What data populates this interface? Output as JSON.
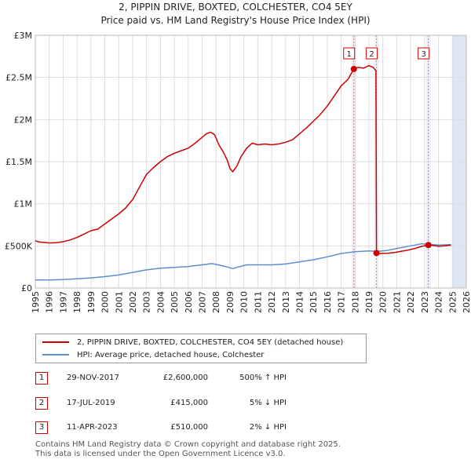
{
  "header": {
    "title_line1": "2, PIPPIN DRIVE, BOXTED, COLCHESTER, CO4 5EY",
    "title_line2": "Price paid vs. HM Land Registry's House Price Index (HPI)"
  },
  "chart_data": {
    "type": "line",
    "xlim": [
      1995,
      2026
    ],
    "ylim": [
      0,
      3000000
    ],
    "y_ticks": [
      {
        "value": 0,
        "label": "£0"
      },
      {
        "value": 500000,
        "label": "£500K"
      },
      {
        "value": 1000000,
        "label": "£1M"
      },
      {
        "value": 1500000,
        "label": "£1.5M"
      },
      {
        "value": 2000000,
        "label": "£2M"
      },
      {
        "value": 2500000,
        "label": "£2.5M"
      },
      {
        "value": 3000000,
        "label": "£3M"
      }
    ],
    "x_ticks": [
      "1995",
      "1996",
      "1997",
      "1998",
      "1999",
      "2000",
      "2001",
      "2002",
      "2003",
      "2004",
      "2005",
      "2006",
      "2007",
      "2008",
      "2009",
      "2010",
      "2011",
      "2012",
      "2013",
      "2014",
      "2015",
      "2016",
      "2017",
      "2018",
      "2019",
      "2020",
      "2021",
      "2022",
      "2023",
      "2024",
      "2025",
      "2026"
    ],
    "data_end": 2025.0,
    "series": [
      {
        "name": "2, PIPPIN DRIVE, BOXTED, COLCHESTER, CO4 5EY (detached house)",
        "color": "#cc0000",
        "points": [
          [
            1995.0,
            560000
          ],
          [
            1995.3,
            545000
          ],
          [
            1995.7,
            540000
          ],
          [
            1996.0,
            535000
          ],
          [
            1996.5,
            538000
          ],
          [
            1997.0,
            550000
          ],
          [
            1997.5,
            570000
          ],
          [
            1998.0,
            600000
          ],
          [
            1998.5,
            640000
          ],
          [
            1999.0,
            680000
          ],
          [
            1999.5,
            700000
          ],
          [
            2000.0,
            760000
          ],
          [
            2000.5,
            820000
          ],
          [
            2001.0,
            880000
          ],
          [
            2001.5,
            950000
          ],
          [
            2002.0,
            1050000
          ],
          [
            2002.5,
            1200000
          ],
          [
            2003.0,
            1350000
          ],
          [
            2003.5,
            1430000
          ],
          [
            2004.0,
            1500000
          ],
          [
            2004.5,
            1560000
          ],
          [
            2005.0,
            1600000
          ],
          [
            2005.5,
            1630000
          ],
          [
            2006.0,
            1660000
          ],
          [
            2006.5,
            1720000
          ],
          [
            2007.0,
            1790000
          ],
          [
            2007.3,
            1830000
          ],
          [
            2007.6,
            1850000
          ],
          [
            2007.9,
            1820000
          ],
          [
            2008.2,
            1700000
          ],
          [
            2008.5,
            1620000
          ],
          [
            2008.8,
            1520000
          ],
          [
            2009.0,
            1420000
          ],
          [
            2009.2,
            1380000
          ],
          [
            2009.5,
            1450000
          ],
          [
            2009.8,
            1560000
          ],
          [
            2010.2,
            1660000
          ],
          [
            2010.6,
            1720000
          ],
          [
            2011.0,
            1700000
          ],
          [
            2011.5,
            1710000
          ],
          [
            2012.0,
            1700000
          ],
          [
            2012.5,
            1710000
          ],
          [
            2013.0,
            1730000
          ],
          [
            2013.5,
            1760000
          ],
          [
            2014.0,
            1830000
          ],
          [
            2014.5,
            1900000
          ],
          [
            2015.0,
            1980000
          ],
          [
            2015.5,
            2060000
          ],
          [
            2016.0,
            2160000
          ],
          [
            2016.5,
            2280000
          ],
          [
            2017.0,
            2400000
          ],
          [
            2017.5,
            2480000
          ],
          [
            2017.91,
            2600000
          ],
          [
            2018.2,
            2620000
          ],
          [
            2018.6,
            2610000
          ],
          [
            2019.0,
            2640000
          ],
          [
            2019.3,
            2620000
          ],
          [
            2019.5,
            2580000
          ],
          [
            2019.54,
            415000
          ],
          [
            2019.8,
            410000
          ],
          [
            2020.3,
            412000
          ],
          [
            2020.8,
            420000
          ],
          [
            2021.3,
            435000
          ],
          [
            2021.8,
            450000
          ],
          [
            2022.3,
            470000
          ],
          [
            2022.8,
            495000
          ],
          [
            2023.27,
            510000
          ],
          [
            2023.6,
            505000
          ],
          [
            2024.0,
            495000
          ],
          [
            2024.5,
            500000
          ],
          [
            2024.9,
            510000
          ]
        ]
      },
      {
        "name": "HPI: Average price, detached house, Colchester",
        "color": "#5b8fcf",
        "points": [
          [
            1995.0,
            95000
          ],
          [
            1996.0,
            96000
          ],
          [
            1997.0,
            100000
          ],
          [
            1998.0,
            110000
          ],
          [
            1999.0,
            120000
          ],
          [
            2000.0,
            135000
          ],
          [
            2001.0,
            155000
          ],
          [
            2002.0,
            185000
          ],
          [
            2003.0,
            215000
          ],
          [
            2004.0,
            235000
          ],
          [
            2005.0,
            245000
          ],
          [
            2006.0,
            255000
          ],
          [
            2007.0,
            275000
          ],
          [
            2007.7,
            290000
          ],
          [
            2008.3,
            270000
          ],
          [
            2008.9,
            245000
          ],
          [
            2009.2,
            230000
          ],
          [
            2009.6,
            250000
          ],
          [
            2010.2,
            275000
          ],
          [
            2011.0,
            275000
          ],
          [
            2012.0,
            275000
          ],
          [
            2013.0,
            285000
          ],
          [
            2014.0,
            310000
          ],
          [
            2015.0,
            335000
          ],
          [
            2016.0,
            370000
          ],
          [
            2017.0,
            410000
          ],
          [
            2018.0,
            430000
          ],
          [
            2019.0,
            440000
          ],
          [
            2019.6,
            435000
          ],
          [
            2020.3,
            445000
          ],
          [
            2021.0,
            470000
          ],
          [
            2022.0,
            500000
          ],
          [
            2022.8,
            525000
          ],
          [
            2023.3,
            520000
          ],
          [
            2024.0,
            510000
          ],
          [
            2024.9,
            515000
          ]
        ]
      }
    ],
    "sales": [
      {
        "id": "1",
        "x": 2017.91,
        "price": 2600000
      },
      {
        "id": "2",
        "x": 2019.54,
        "price": 415000
      },
      {
        "id": "3",
        "x": 2023.27,
        "price": 510000
      }
    ]
  },
  "legend": {
    "property_label": "2, PIPPIN DRIVE, BOXTED, COLCHESTER, CO4 5EY (detached house)",
    "hpi_label": "HPI: Average price, detached house, Colchester"
  },
  "transactions": [
    {
      "num": "1",
      "date": "29-NOV-2017",
      "price": "£2,600,000",
      "hpi": "500% ↑ HPI"
    },
    {
      "num": "2",
      "date": "17-JUL-2019",
      "price": "£415,000",
      "hpi": "5% ↓ HPI"
    },
    {
      "num": "3",
      "date": "11-APR-2023",
      "price": "£510,000",
      "hpi": "2% ↓ HPI"
    }
  ],
  "footer": {
    "line1": "Contains HM Land Registry data © Crown copyright and database right 2025.",
    "line2": "This data is licensed under the Open Government Licence v3.0."
  }
}
